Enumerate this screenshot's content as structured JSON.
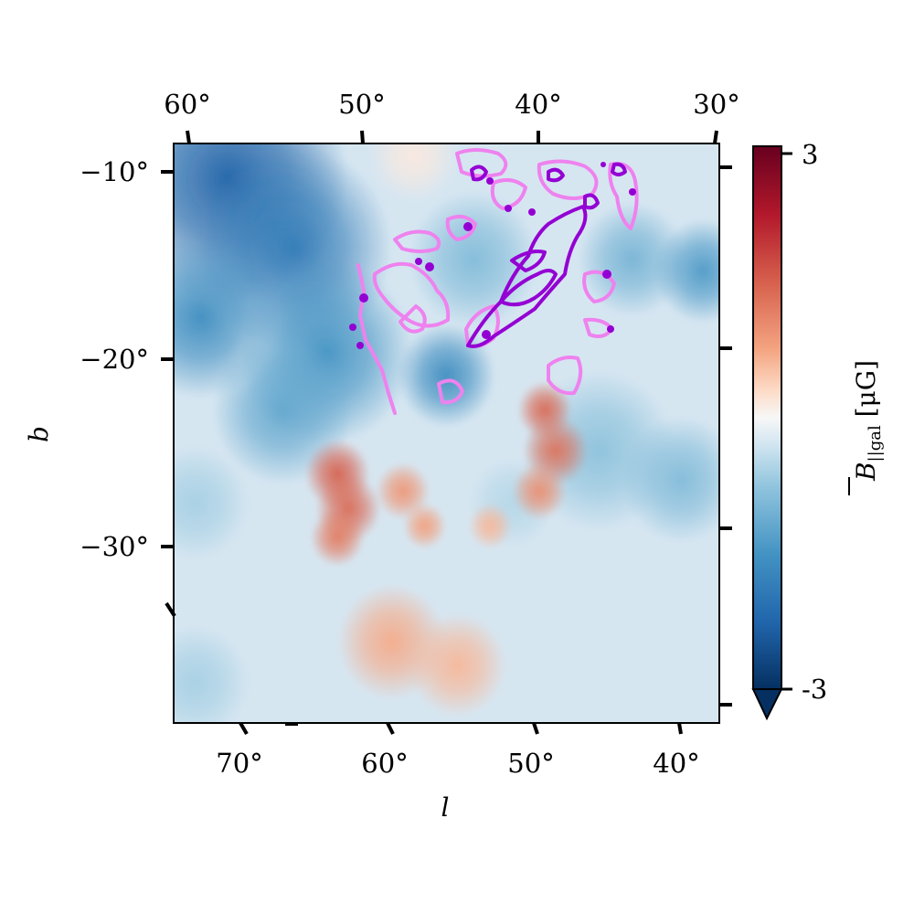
{
  "chart_data": {
    "type": "heatmap",
    "xlabel": "l",
    "ylabel": "b",
    "bottom_axis": {
      "ticks": [
        {
          "value": 70,
          "label": "70°"
        },
        {
          "value": 60,
          "label": "60°"
        },
        {
          "value": 50,
          "label": "50°"
        },
        {
          "value": 40,
          "label": "40°"
        }
      ]
    },
    "top_axis": {
      "ticks": [
        {
          "value": 60,
          "label": "60°"
        },
        {
          "value": 50,
          "label": "50°"
        },
        {
          "value": 40,
          "label": "40°"
        },
        {
          "value": 30,
          "label": "30°"
        }
      ]
    },
    "left_axis": {
      "ticks": [
        {
          "value": -10,
          "label": "−10°"
        },
        {
          "value": -20,
          "label": "−20°"
        },
        {
          "value": -30,
          "label": "−30°"
        }
      ]
    },
    "colorbar": {
      "label_main": "B",
      "label_sub": "||gal",
      "label_unit": "[μG]",
      "tick_labels": [
        "3",
        "-3"
      ],
      "range": [
        -3,
        3
      ],
      "colormap": "RdBu_r",
      "extend": "min"
    },
    "blobs": [
      {
        "x": 0.1,
        "y": 0.06,
        "r": 0.22,
        "v": -2.3
      },
      {
        "x": 0.22,
        "y": 0.18,
        "r": 0.18,
        "v": -1.9
      },
      {
        "x": 0.05,
        "y": 0.3,
        "r": 0.14,
        "v": -1.6
      },
      {
        "x": 0.28,
        "y": 0.36,
        "r": 0.16,
        "v": -1.5
      },
      {
        "x": 0.2,
        "y": 0.46,
        "r": 0.13,
        "v": -1.2
      },
      {
        "x": 0.5,
        "y": 0.4,
        "r": 0.09,
        "v": -1.6
      },
      {
        "x": 0.55,
        "y": 0.2,
        "r": 0.12,
        "v": -0.9
      },
      {
        "x": 0.84,
        "y": 0.2,
        "r": 0.1,
        "v": -1.0
      },
      {
        "x": 0.97,
        "y": 0.22,
        "r": 0.09,
        "v": -1.4
      },
      {
        "x": 0.78,
        "y": 0.53,
        "r": 0.14,
        "v": -0.8
      },
      {
        "x": 0.93,
        "y": 0.58,
        "r": 0.11,
        "v": -0.9
      },
      {
        "x": 0.04,
        "y": 0.62,
        "r": 0.1,
        "v": -0.6
      },
      {
        "x": 0.04,
        "y": 0.93,
        "r": 0.1,
        "v": -0.6
      },
      {
        "x": 0.62,
        "y": 0.62,
        "r": 0.08,
        "v": -0.5
      },
      {
        "x": 0.44,
        "y": 0.02,
        "r": 0.08,
        "v": 0.15
      },
      {
        "x": 0.3,
        "y": 0.57,
        "r": 0.06,
        "v": 1.5
      },
      {
        "x": 0.32,
        "y": 0.63,
        "r": 0.06,
        "v": 1.4
      },
      {
        "x": 0.3,
        "y": 0.68,
        "r": 0.05,
        "v": 1.2
      },
      {
        "x": 0.42,
        "y": 0.6,
        "r": 0.05,
        "v": 0.9
      },
      {
        "x": 0.46,
        "y": 0.66,
        "r": 0.04,
        "v": 0.8
      },
      {
        "x": 0.68,
        "y": 0.46,
        "r": 0.05,
        "v": 1.4
      },
      {
        "x": 0.7,
        "y": 0.53,
        "r": 0.06,
        "v": 1.3
      },
      {
        "x": 0.67,
        "y": 0.6,
        "r": 0.05,
        "v": 1.0
      },
      {
        "x": 0.58,
        "y": 0.66,
        "r": 0.04,
        "v": 0.6
      },
      {
        "x": 0.4,
        "y": 0.86,
        "r": 0.1,
        "v": 0.7
      },
      {
        "x": 0.52,
        "y": 0.9,
        "r": 0.09,
        "v": 0.6
      }
    ],
    "contour_colors": {
      "outer": "#ee82ee",
      "inner": "#9400d3"
    }
  }
}
